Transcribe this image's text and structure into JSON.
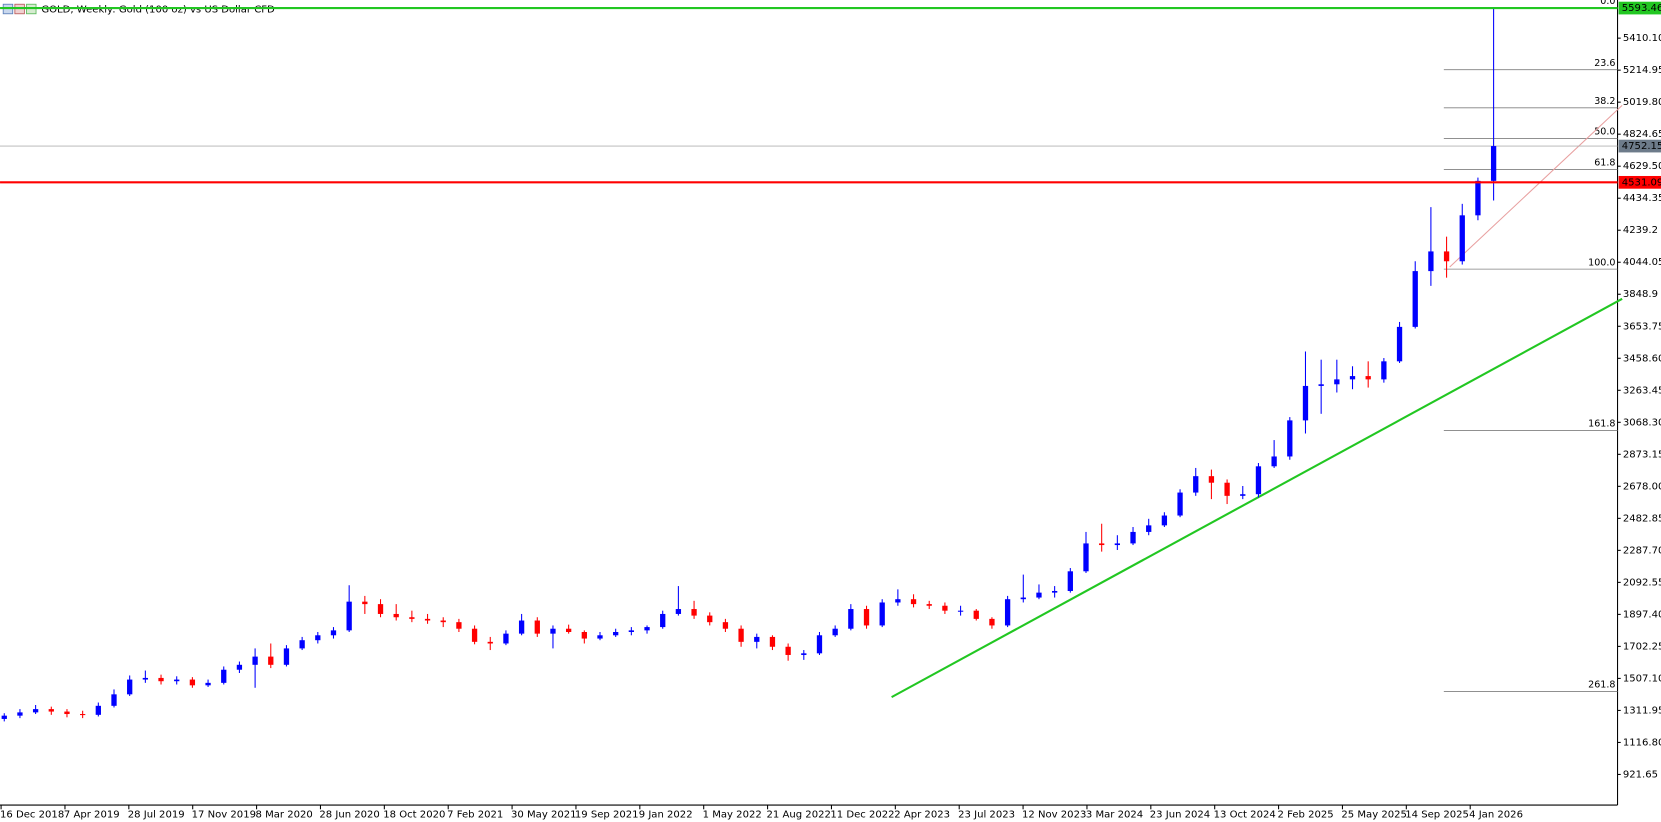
{
  "chart_data": {
    "type": "candlestick",
    "title": "GOLD, Weekly:  Gold (100 oz) vs US Dollar CFD",
    "up_color": "#0000ff",
    "down_color": "#ff0000",
    "ylim": [
      735.1,
      5642.6
    ],
    "yticks": [
      {
        "value": 5410.1,
        "label": "5410.10"
      },
      {
        "value": 5214.95,
        "label": "5214.95"
      },
      {
        "value": 5019.8,
        "label": "5019.80"
      },
      {
        "value": 4824.65,
        "label": "4824.65"
      },
      {
        "value": 4629.5,
        "label": "4629.50"
      },
      4434.35,
      4239.2,
      4044.05,
      3848.9,
      3653.75,
      {
        "value": 3458.6,
        "label": "3458.60"
      },
      3263.45,
      {
        "value": 3068.3,
        "label": "3068.30"
      },
      2873.15,
      {
        "value": 2678,
        "label": "2678.00"
      },
      2482.85,
      {
        "value": 2287.7,
        "label": "2287.70"
      },
      2092.55,
      {
        "value": 1897.4,
        "label": "1897.40"
      },
      1702.25,
      {
        "value": 1507.1,
        "label": "1507.10"
      },
      1311.95,
      {
        "value": 1116.8,
        "label": "1116.80"
      },
      921.65
    ],
    "xtick_labels": [
      "16 Dec 2018",
      "7 Apr 2019",
      "28 Jul 2019",
      "17 Nov 2019",
      "8 Mar 2020",
      "28 Jun 2020",
      "18 Oct 2020",
      "7 Feb 2021",
      "30 May 2021",
      "19 Sep 2021",
      "9 Jan 2022",
      "1 May 2022",
      "21 Aug 2022",
      "11 Dec 2022",
      "2 Apr 2023",
      "23 Jul 2023",
      "12 Nov 2023",
      "3 Mar 2024",
      "23 Jun 2024",
      "13 Oct 2024",
      "2 Feb 2025",
      "25 May 2025",
      "14 Sep 2025",
      "4 Jan 2026"
    ],
    "candles": [
      [
        1260,
        1295,
        1245,
        1280
      ],
      [
        1280,
        1320,
        1265,
        1300
      ],
      [
        1300,
        1345,
        1290,
        1320
      ],
      [
        1320,
        1335,
        1285,
        1305
      ],
      [
        1305,
        1320,
        1270,
        1290
      ],
      [
        1290,
        1310,
        1265,
        1285
      ],
      [
        1285,
        1360,
        1275,
        1340
      ],
      [
        1340,
        1440,
        1330,
        1410
      ],
      [
        1410,
        1525,
        1400,
        1500
      ],
      [
        1500,
        1555,
        1480,
        1510
      ],
      [
        1510,
        1530,
        1470,
        1490
      ],
      [
        1490,
        1520,
        1470,
        1500
      ],
      [
        1500,
        1515,
        1450,
        1465
      ],
      [
        1465,
        1500,
        1455,
        1480
      ],
      [
        1480,
        1580,
        1470,
        1560
      ],
      [
        1560,
        1610,
        1540,
        1590
      ],
      [
        1590,
        1690,
        1450,
        1640
      ],
      [
        1640,
        1720,
        1570,
        1590
      ],
      [
        1590,
        1710,
        1580,
        1690
      ],
      [
        1690,
        1760,
        1680,
        1740
      ],
      [
        1740,
        1790,
        1720,
        1770
      ],
      [
        1770,
        1820,
        1750,
        1800
      ],
      [
        1800,
        2075,
        1790,
        1975
      ],
      [
        1975,
        2010,
        1900,
        1960
      ],
      [
        1960,
        1990,
        1880,
        1900
      ],
      [
        1900,
        1960,
        1860,
        1880
      ],
      [
        1880,
        1920,
        1850,
        1870
      ],
      [
        1870,
        1900,
        1840,
        1860
      ],
      [
        1860,
        1880,
        1820,
        1850
      ],
      [
        1850,
        1870,
        1790,
        1810
      ],
      [
        1810,
        1830,
        1715,
        1730
      ],
      [
        1730,
        1760,
        1680,
        1720
      ],
      [
        1720,
        1800,
        1710,
        1780
      ],
      [
        1780,
        1900,
        1770,
        1860
      ],
      [
        1860,
        1880,
        1760,
        1780
      ],
      [
        1780,
        1830,
        1690,
        1810
      ],
      [
        1810,
        1835,
        1780,
        1790
      ],
      [
        1790,
        1800,
        1720,
        1750
      ],
      [
        1750,
        1790,
        1740,
        1770
      ],
      [
        1770,
        1810,
        1760,
        1790
      ],
      [
        1790,
        1820,
        1770,
        1800
      ],
      [
        1800,
        1830,
        1780,
        1820
      ],
      [
        1820,
        1920,
        1810,
        1900
      ],
      [
        1900,
        2070,
        1890,
        1930
      ],
      [
        1930,
        1980,
        1870,
        1890
      ],
      [
        1890,
        1910,
        1830,
        1850
      ],
      [
        1850,
        1870,
        1790,
        1810
      ],
      [
        1810,
        1830,
        1700,
        1730
      ],
      [
        1730,
        1780,
        1690,
        1760
      ],
      [
        1760,
        1770,
        1680,
        1700
      ],
      [
        1700,
        1720,
        1615,
        1650
      ],
      [
        1650,
        1680,
        1620,
        1660
      ],
      [
        1660,
        1790,
        1650,
        1770
      ],
      [
        1770,
        1830,
        1760,
        1810
      ],
      [
        1810,
        1960,
        1800,
        1930
      ],
      [
        1930,
        1950,
        1810,
        1830
      ],
      [
        1830,
        1990,
        1820,
        1970
      ],
      [
        1970,
        2050,
        1950,
        1990
      ],
      [
        1990,
        2020,
        1940,
        1960
      ],
      [
        1960,
        1980,
        1930,
        1950
      ],
      [
        1950,
        1970,
        1900,
        1920
      ],
      [
        1920,
        1950,
        1890,
        1920
      ],
      [
        1920,
        1930,
        1860,
        1870
      ],
      [
        1870,
        1880,
        1810,
        1830
      ],
      [
        1830,
        2010,
        1820,
        1990
      ],
      [
        1990,
        2140,
        1970,
        2000
      ],
      [
        2000,
        2080,
        1990,
        2030
      ],
      [
        2030,
        2070,
        2000,
        2040
      ],
      [
        2040,
        2180,
        2030,
        2160
      ],
      [
        2160,
        2400,
        2150,
        2330
      ],
      [
        2330,
        2450,
        2280,
        2320
      ],
      [
        2320,
        2380,
        2290,
        2330
      ],
      [
        2330,
        2430,
        2320,
        2400
      ],
      [
        2400,
        2480,
        2380,
        2440
      ],
      [
        2440,
        2520,
        2430,
        2500
      ],
      [
        2500,
        2660,
        2490,
        2640
      ],
      [
        2640,
        2790,
        2620,
        2740
      ],
      [
        2740,
        2780,
        2600,
        2700
      ],
      [
        2700,
        2720,
        2570,
        2620
      ],
      [
        2620,
        2680,
        2600,
        2630
      ],
      [
        2630,
        2820,
        2610,
        2800
      ],
      [
        2800,
        2960,
        2790,
        2860
      ],
      [
        2860,
        3100,
        2840,
        3080
      ],
      [
        3080,
        3500,
        3000,
        3290
      ],
      [
        3290,
        3450,
        3120,
        3300
      ],
      [
        3300,
        3450,
        3250,
        3330
      ],
      [
        3330,
        3410,
        3270,
        3350
      ],
      [
        3350,
        3440,
        3280,
        3330
      ],
      [
        3330,
        3460,
        3310,
        3440
      ],
      [
        3440,
        3680,
        3430,
        3650
      ],
      [
        3650,
        4050,
        3640,
        3990
      ],
      [
        3990,
        4380,
        3900,
        4110
      ],
      [
        4110,
        4200,
        3950,
        4050
      ],
      [
        4050,
        4400,
        4030,
        4330
      ],
      [
        4330,
        4560,
        4300,
        4540
      ],
      [
        4540,
        5593.46,
        4420,
        4752.15
      ]
    ],
    "current_price": {
      "value": 4752.15,
      "label": "4752.15",
      "color": "#6d7b8a"
    },
    "levels": [
      {
        "value": 5593.46,
        "label": "5593.46",
        "color": "#22c722"
      },
      {
        "value": 4531.09,
        "label": "4531.09",
        "color": "#ff0000"
      }
    ],
    "fibonacci": {
      "from": 4002,
      "to": 5593.46,
      "levels": [
        {
          "value": 0,
          "label": "0.0"
        },
        23.6,
        38.2,
        {
          "value": 50,
          "label": "50.0"
        },
        61.8,
        {
          "value": 100,
          "label": "100.0"
        },
        161.8,
        261.8
      ]
    },
    "trendlines": [
      {
        "color": "#22c722",
        "points": [
          [
            56.6,
            1393
          ],
          [
            103.2,
            3821
          ]
        ]
      },
      {
        "color": "#e8a0a0",
        "points": [
          [
            92.2,
            4015
          ],
          [
            103.2,
            5000
          ]
        ]
      }
    ]
  }
}
